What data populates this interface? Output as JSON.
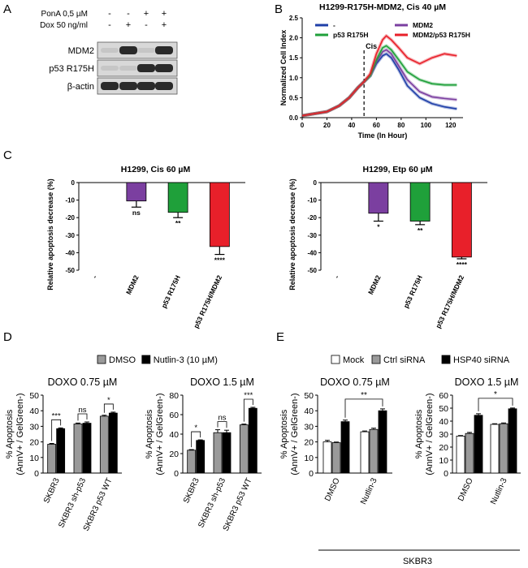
{
  "panels": {
    "A": "A",
    "B": "B",
    "C": "C",
    "D": "D",
    "E": "E"
  },
  "blot": {
    "conditions": [
      {
        "label": "PonA 0,5 µM",
        "values": [
          "-",
          "-",
          "+",
          "+"
        ]
      },
      {
        "label": "Dox 50 ng/ml",
        "values": [
          "-",
          "+",
          "-",
          "+"
        ]
      }
    ],
    "rows": [
      {
        "label": "MDM2",
        "bands": [
          0,
          1,
          0,
          1
        ]
      },
      {
        "label": "p53 R175H",
        "bands": [
          0,
          0,
          1,
          1
        ]
      },
      {
        "label": "β-actin",
        "bands": [
          1,
          1,
          1,
          1
        ]
      }
    ]
  },
  "significance": {
    "ns": "ns",
    "one": "*",
    "two": "**",
    "three": "***",
    "four": "****"
  },
  "chart_data": [
    {
      "id": "B",
      "type": "line",
      "title": "H1299-R175H-MDM2, Cis 40 µM",
      "xlabel": "Time (In Hour)",
      "ylabel": "Normalized Cell Index",
      "xlim": [
        0,
        130
      ],
      "ylim": [
        0,
        2.5
      ],
      "xticks": [
        0,
        20,
        40,
        60,
        80,
        100,
        120
      ],
      "yticks": [
        0.0,
        0.5,
        1.0,
        1.5,
        2.0,
        2.5
      ],
      "annotation": {
        "label": "Cis",
        "x": 50
      },
      "series": [
        {
          "name": "-",
          "color": "#1f3fa8",
          "x": [
            0,
            10,
            20,
            30,
            38,
            45,
            50,
            55,
            60,
            65,
            68,
            72,
            78,
            85,
            95,
            105,
            115,
            125
          ],
          "y": [
            0.05,
            0.1,
            0.15,
            0.3,
            0.5,
            0.75,
            0.9,
            1.05,
            1.35,
            1.55,
            1.6,
            1.5,
            1.2,
            0.8,
            0.5,
            0.35,
            0.27,
            0.22
          ]
        },
        {
          "name": "MDM2",
          "color": "#7b3fa0",
          "x": [
            0,
            10,
            20,
            30,
            38,
            45,
            50,
            55,
            60,
            65,
            68,
            72,
            78,
            85,
            95,
            105,
            115,
            125
          ],
          "y": [
            0.05,
            0.1,
            0.15,
            0.3,
            0.5,
            0.75,
            0.9,
            1.05,
            1.4,
            1.65,
            1.7,
            1.6,
            1.3,
            0.95,
            0.65,
            0.52,
            0.48,
            0.45
          ]
        },
        {
          "name": "p53 R175H",
          "color": "#1fa03a",
          "x": [
            0,
            10,
            20,
            30,
            38,
            45,
            50,
            55,
            60,
            65,
            68,
            72,
            78,
            85,
            95,
            105,
            115,
            125
          ],
          "y": [
            0.05,
            0.1,
            0.15,
            0.3,
            0.5,
            0.75,
            0.9,
            1.05,
            1.45,
            1.75,
            1.8,
            1.7,
            1.45,
            1.15,
            0.95,
            0.85,
            0.82,
            0.82
          ]
        },
        {
          "name": "MDM2/p53 R175H",
          "color": "#e8202a",
          "x": [
            0,
            10,
            20,
            30,
            38,
            45,
            50,
            55,
            60,
            65,
            68,
            72,
            78,
            85,
            95,
            105,
            115,
            125
          ],
          "y": [
            0.05,
            0.1,
            0.15,
            0.3,
            0.5,
            0.75,
            0.9,
            1.1,
            1.6,
            1.95,
            2.05,
            1.95,
            1.75,
            1.5,
            1.35,
            1.5,
            1.6,
            1.55
          ]
        }
      ]
    },
    {
      "id": "C1",
      "type": "bar",
      "title": "H1299, Cis 60 µM",
      "ylabel": "Relative apoptosis decrease (%)",
      "ylim": [
        -50,
        0
      ],
      "yticks": [
        0,
        -10,
        -20,
        -30,
        -40,
        -50
      ],
      "categories": [
        "-",
        "MDM2",
        "p53 R175H",
        "p53 R175H/MDM2"
      ],
      "values": [
        0,
        -10.5,
        -17,
        -36.5
      ],
      "errors": [
        0,
        3.5,
        3,
        4.5
      ],
      "colors": [
        "#ffffff",
        "#7b3fa0",
        "#1fa03a",
        "#e8202a"
      ],
      "significance": [
        "",
        "ns",
        "**",
        "****"
      ]
    },
    {
      "id": "C2",
      "type": "bar",
      "title": "H1299, Etp 60 µM",
      "ylabel": "Relative apoptosis decrease (%)",
      "ylim": [
        -50,
        0
      ],
      "yticks": [
        0,
        -10,
        -20,
        -30,
        -40,
        -50
      ],
      "categories": [
        "-",
        "MDM2",
        "p53 R175H",
        "p53 R175H/MDM2"
      ],
      "values": [
        0,
        -17.5,
        -22,
        -42.5
      ],
      "errors": [
        0,
        4.5,
        2,
        1
      ],
      "colors": [
        "#ffffff",
        "#7b3fa0",
        "#1fa03a",
        "#e8202a"
      ],
      "significance": [
        "",
        "*",
        "**",
        "****"
      ]
    },
    {
      "id": "D1",
      "type": "bar",
      "title": "DOXO 0.75 µM",
      "ylabel": "% Apoptosis (AnnV+ / GelGreen-)",
      "ylim": [
        0,
        50
      ],
      "yticks": [
        0,
        10,
        20,
        30,
        40,
        50
      ],
      "categories": [
        "SKBR3",
        "SKBR3 sh-p53",
        "SKBR3 p53 WT"
      ],
      "series": [
        {
          "name": "DMSO",
          "color": "#9a9a9a",
          "values": [
            18.5,
            31.5,
            36.5
          ],
          "errors": [
            0.5,
            0.6,
            0.6
          ]
        },
        {
          "name": "Nutlin-3 (10 µM)",
          "color": "#000000",
          "values": [
            28.5,
            32,
            38.5
          ],
          "errors": [
            0.5,
            0.8,
            0.6
          ]
        }
      ],
      "brackets": [
        {
          "category": 0,
          "label": "***"
        },
        {
          "category": 1,
          "label": "ns"
        },
        {
          "category": 2,
          "label": "*"
        }
      ]
    },
    {
      "id": "D2",
      "type": "bar",
      "title": "DOXO 1.5 µM",
      "ylabel": "% Apoptosis (AnnV+ / GelGreen-)",
      "ylim": [
        0,
        80
      ],
      "yticks": [
        0,
        20,
        40,
        60,
        80
      ],
      "categories": [
        "SKBR3",
        "SKBR3 sh-p53",
        "SKBR3 p53 WT"
      ],
      "series": [
        {
          "name": "DMSO",
          "color": "#9a9a9a",
          "values": [
            23.5,
            41.5,
            49.5
          ],
          "errors": [
            0.6,
            3,
            0.8
          ]
        },
        {
          "name": "Nutlin-3 (10 µM)",
          "color": "#000000",
          "values": [
            33.5,
            41.5,
            66.5
          ],
          "errors": [
            0.6,
            2.5,
            1
          ]
        }
      ],
      "brackets": [
        {
          "category": 0,
          "label": "*"
        },
        {
          "category": 1,
          "label": "ns"
        },
        {
          "category": 2,
          "label": "***"
        }
      ]
    },
    {
      "id": "E1",
      "type": "bar",
      "title": "DOXO 0.75 µM",
      "ylabel": "% Apoptosis (AnnV+ / GelGreen-)",
      "ylim": [
        0,
        50
      ],
      "yticks": [
        0,
        10,
        20,
        30,
        40,
        50
      ],
      "categories": [
        "DMSO",
        "Nutlin-3"
      ],
      "series": [
        {
          "name": "Mock",
          "color": "#ffffff",
          "values": [
            20,
            26.5
          ],
          "errors": [
            1,
            0.5
          ]
        },
        {
          "name": "Ctrl siRNA",
          "color": "#9a9a9a",
          "values": [
            19.5,
            28
          ],
          "errors": [
            0.4,
            0.8
          ]
        },
        {
          "name": "HSP40 siRNA",
          "color": "#000000",
          "values": [
            33,
            40
          ],
          "errors": [
            1,
            1.2
          ]
        }
      ],
      "span": {
        "from": 0,
        "to": 1,
        "label": "**"
      }
    },
    {
      "id": "E2",
      "type": "bar",
      "title": "DOXO 1.5 µM",
      "ylabel": "% Apoptosis (AnnV+ / GelGreen-)",
      "ylim": [
        0,
        60
      ],
      "yticks": [
        0,
        10,
        20,
        30,
        40,
        50,
        60
      ],
      "categories": [
        "DMSO",
        "Nutlin-3"
      ],
      "series": [
        {
          "name": "Mock",
          "color": "#ffffff",
          "values": [
            28.5,
            37.5
          ],
          "errors": [
            0.4,
            0.5
          ]
        },
        {
          "name": "Ctrl siRNA",
          "color": "#9a9a9a",
          "values": [
            30.5,
            38
          ],
          "errors": [
            0.8,
            0.6
          ]
        },
        {
          "name": "HSP40 siRNA",
          "color": "#000000",
          "values": [
            44.5,
            49.5
          ],
          "errors": [
            1.2,
            0.6
          ]
        }
      ],
      "span": {
        "from": 0,
        "to": 1,
        "label": "*"
      }
    }
  ],
  "legendD": [
    {
      "name": "DMSO",
      "color": "#9a9a9a"
    },
    {
      "name": "Nutlin-3 (10 µM)",
      "color": "#000000"
    }
  ],
  "legendE": [
    {
      "name": "Mock",
      "color": "#ffffff"
    },
    {
      "name": "Ctrl siRNA",
      "color": "#9a9a9a"
    },
    {
      "name": "HSP40 siRNA",
      "color": "#000000"
    }
  ],
  "footerE": "SKBR3"
}
